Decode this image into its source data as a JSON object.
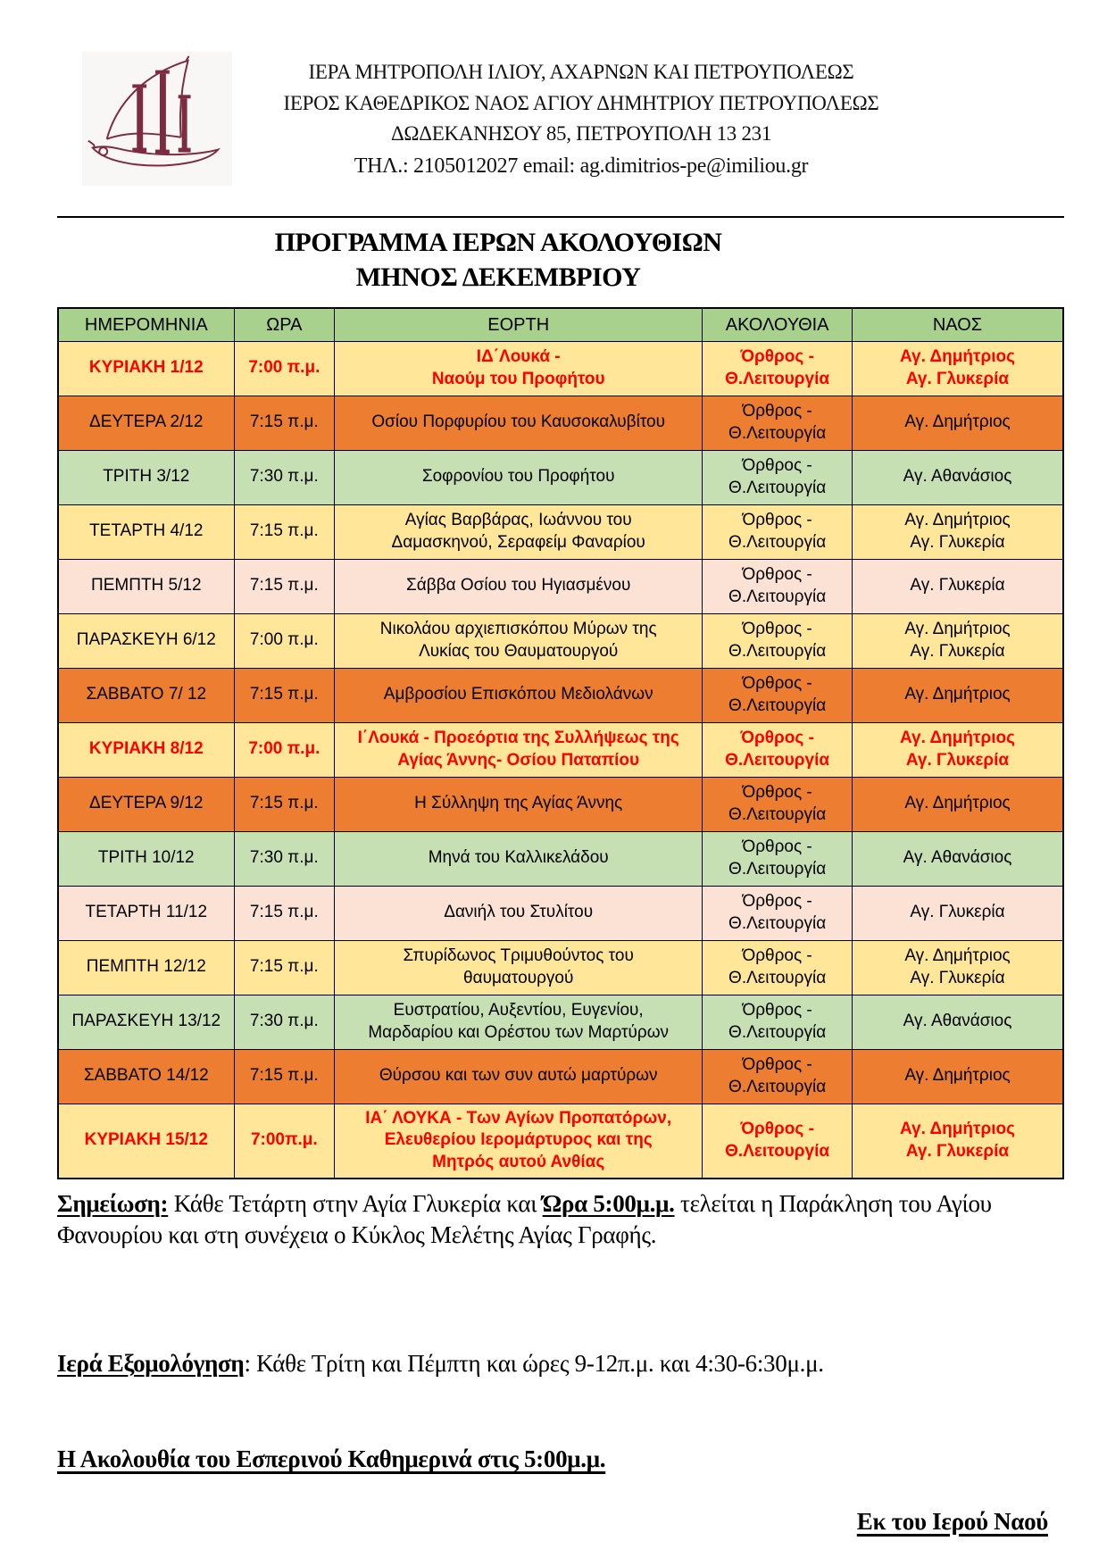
{
  "letterhead": {
    "line1": "ΙΕΡΑ ΜΗΤΡΟΠΟΛΗ ΙΛΙΟΥ, ΑΧΑΡΝΩΝ ΚΑΙ ΠΕΤΡΟΥΠΟΛΕΩΣ",
    "line2": "ΙΕΡΟΣ ΚΑΘΕΔΡΙΚΟΣ ΝΑΟΣ ΑΓΙΟΥ ΔΗΜΗΤΡΙΟΥ ΠΕΤΡΟΥΠΟΛΕΩΣ",
    "line3": "ΔΩΔΕΚΑΝΗΣΟΥ 85, ΠΕΤΡΟΥΠΟΛΗ 13 231",
    "line4": "ΤΗΛ.: 2105012027 email: ag.dimitrios-pe@imiliou.gr",
    "logo": "ship-with-columns-emblem"
  },
  "title": {
    "line1": "ΠΡΟΓΡΑΜΜΑ ΙΕΡΩΝ ΑΚΟΛΟΥΘΙΩΝ",
    "line2": "ΜΗΝΟΣ ΔΕΚΕΜΒΡΙΟΥ"
  },
  "colors": {
    "header_green": "#A9D18E",
    "row_yellow": "#FFE699",
    "row_orange": "#ED7D31",
    "row_green": "#C6E0B4",
    "row_pink": "#FBE2D5",
    "red_text": "#FF0000",
    "logo_maroon": "#7D2B40"
  },
  "table": {
    "columns": [
      "ΗΜΕΡΟΜΗΝΙΑ",
      "ΩΡΑ",
      "ΕΟΡΤΗ",
      "ΑΚΟΛΟΥΘΙΑ",
      "ΝΑΟΣ"
    ],
    "rows": [
      {
        "date": "ΚΥΡΙΑΚΗ 1/12",
        "time": "7:00 π.μ.",
        "feast": [
          "ΙΔ΄Λουκά -",
          "Ναούμ  του Προφήτου"
        ],
        "service": [
          "Όρθρος -",
          "Θ.Λειτουργία"
        ],
        "church": [
          "Αγ. Δημήτριος",
          "Αγ. Γλυκερία"
        ],
        "bg": "yellow",
        "emphasis": "red"
      },
      {
        "date": "ΔΕΥΤΕΡΑ 2/12",
        "time": "7:15 π.μ.",
        "feast": [
          "Οσίου Πορφυρίου του Καυσοκαλυβίτου"
        ],
        "service": [
          "Όρθρος -",
          "Θ.Λειτουργία"
        ],
        "church": [
          "Αγ. Δημήτριος"
        ],
        "bg": "orange",
        "emphasis": "black"
      },
      {
        "date": "ΤΡΙΤΗ 3/12",
        "time": "7:30 π.μ.",
        "feast": [
          "Σοφρονίου του Προφήτου"
        ],
        "service": [
          "Όρθρος -",
          "Θ.Λειτουργία"
        ],
        "church": [
          "Αγ. Αθανάσιος"
        ],
        "bg": "green",
        "emphasis": "black"
      },
      {
        "date": "ΤΕΤΑΡΤΗ 4/12",
        "time": "7:15 π.μ.",
        "feast": [
          "Αγίας Βαρβάρας, Ιωάννου του",
          "Δαμασκηνού, Σεραφείμ Φαναρίου"
        ],
        "service": [
          "Όρθρος -",
          "Θ.Λειτουργία"
        ],
        "church": [
          "Αγ. Δημήτριος",
          "Αγ. Γλυκερία"
        ],
        "bg": "yellow",
        "emphasis": "black"
      },
      {
        "date": "ΠΕΜΠΤΗ 5/12",
        "time": "7:15 π.μ.",
        "feast": [
          "Σάββα Οσίου του Ηγιασμένου"
        ],
        "service": [
          "Όρθρος -",
          "Θ.Λειτουργία"
        ],
        "church": [
          "Αγ. Γλυκερία"
        ],
        "bg": "pink",
        "emphasis": "black"
      },
      {
        "date": "ΠΑΡΑΣΚΕΥΗ 6/12",
        "time": "7:00 π.μ.",
        "feast": [
          "Νικολάου αρχιεπισκόπου Μύρων της",
          "Λυκίας του Θαυματουργού"
        ],
        "service": [
          "Όρθρος -",
          "Θ.Λειτουργία"
        ],
        "church": [
          "Αγ. Δημήτριος",
          "Αγ. Γλυκερία"
        ],
        "bg": "yellow",
        "emphasis": "black"
      },
      {
        "date": "ΣΑΒΒΑΤΟ 7/ 12",
        "time": "7:15 π.μ.",
        "feast": [
          "Αμβροσίου Επισκόπου Μεδιολάνων"
        ],
        "service": [
          "Όρθρος -",
          "Θ.Λειτουργία"
        ],
        "church": [
          "Αγ. Δημήτριος"
        ],
        "bg": "orange",
        "emphasis": "black"
      },
      {
        "date": "ΚΥΡΙΑΚΗ 8/12",
        "time": "7:00 π.μ.",
        "feast": [
          "Ι΄Λουκά - Προεόρτια της Συλλήψεως της",
          "Αγίας Άννης- Οσίου Παταπίου"
        ],
        "service": [
          "Όρθρος -",
          "Θ.Λειτουργία"
        ],
        "church": [
          "Αγ. Δημήτριος",
          "Αγ. Γλυκερία"
        ],
        "bg": "yellow",
        "emphasis": "red"
      },
      {
        "date": "ΔΕΥΤΕΡΑ 9/12",
        "time": "7:15 π.μ.",
        "feast": [
          "Η Σύλληψη της Αγίας Άννης"
        ],
        "service": [
          "Όρθρος -",
          "Θ.Λειτουργία"
        ],
        "church": [
          "Αγ. Δημήτριος"
        ],
        "bg": "orange",
        "emphasis": "black"
      },
      {
        "date": "ΤΡΙΤΗ 10/12",
        "time": "7:30 π.μ.",
        "feast": [
          "Μηνά του Καλλικελάδου"
        ],
        "service": [
          "Όρθρος -",
          "Θ.Λειτουργία"
        ],
        "church": [
          "Αγ. Αθανάσιος"
        ],
        "bg": "green",
        "emphasis": "black"
      },
      {
        "date": "ΤΕΤΑΡΤΗ 11/12",
        "time": "7:15 π.μ.",
        "feast": [
          "Δανιήλ του Στυλίτου"
        ],
        "service": [
          "Όρθρος -",
          "Θ.Λειτουργία"
        ],
        "church": [
          "Αγ. Γλυκερία"
        ],
        "bg": "pink",
        "emphasis": "black"
      },
      {
        "date": "ΠΕΜΠΤΗ 12/12",
        "time": "7:15 π.μ.",
        "feast": [
          "Σπυρίδωνος Τριμυθούντος του",
          "θαυματουργού"
        ],
        "service": [
          "Όρθρος -",
          "Θ.Λειτουργία"
        ],
        "church": [
          "Αγ. Δημήτριος",
          "Αγ. Γλυκερία"
        ],
        "bg": "yellow",
        "emphasis": "black"
      },
      {
        "date": "ΠΑΡΑΣΚΕΥΗ 13/12",
        "time": "7:30 π.μ.",
        "feast": [
          "Ευστρατίου, Αυξεντίου, Ευγενίου,",
          "Μαρδαρίου και Ορέστου των Μαρτύρων"
        ],
        "service": [
          "Όρθρος -",
          "Θ.Λειτουργία"
        ],
        "church": [
          "Αγ. Αθανάσιος"
        ],
        "bg": "green",
        "emphasis": "black"
      },
      {
        "date": "ΣΑΒΒΑΤΟ 14/12",
        "time": "7:15 π.μ.",
        "feast": [
          "Θύρσου και των συν αυτώ μαρτύρων"
        ],
        "service": [
          "Όρθρος -",
          "Θ.Λειτουργία"
        ],
        "church": [
          "Αγ. Δημήτριος"
        ],
        "bg": "orange",
        "emphasis": "black"
      },
      {
        "date": "ΚΥΡΙΑΚΗ 15/12",
        "time": "7:00π.μ.",
        "feast": [
          "ΙΑ΄ ΛΟΥΚΑ - Των Αγίων Προπατόρων,",
          "Ελευθερίου Ιερομάρτυρος και της",
          "Μητρός αυτού Ανθίας"
        ],
        "service": [
          "Όρθρος -",
          "Θ.Λειτουργία"
        ],
        "church": [
          "Αγ. Δημήτριος",
          "Αγ. Γλυκερία"
        ],
        "bg": "yellow",
        "emphasis": "red"
      }
    ]
  },
  "notes": {
    "paraklisi_label": "Σημείωση:",
    "paraklisi_part1": " Κάθε Τετάρτη στην Αγία Γλυκερία και ",
    "paraklisi_time": "Ώρα 5:00μ.μ.",
    "paraklisi_part2": " τελείται η Παράκληση του Αγίου Φανουρίου και στη συνέχεια ο Κύκλος Μελέτης Αγίας Γραφής.",
    "confession_label": "Ιερά Εξομολόγηση",
    "confession_text": ": Κάθε Τρίτη και Πέμπτη και ώρες 9-12π.μ. και 4:30-6:30μ.μ.",
    "vespers": "Η Ακολουθία του Εσπερινού Καθημερινά στις 5:00μ.μ.",
    "signoff": "Εκ του Ιερού Ναού"
  }
}
